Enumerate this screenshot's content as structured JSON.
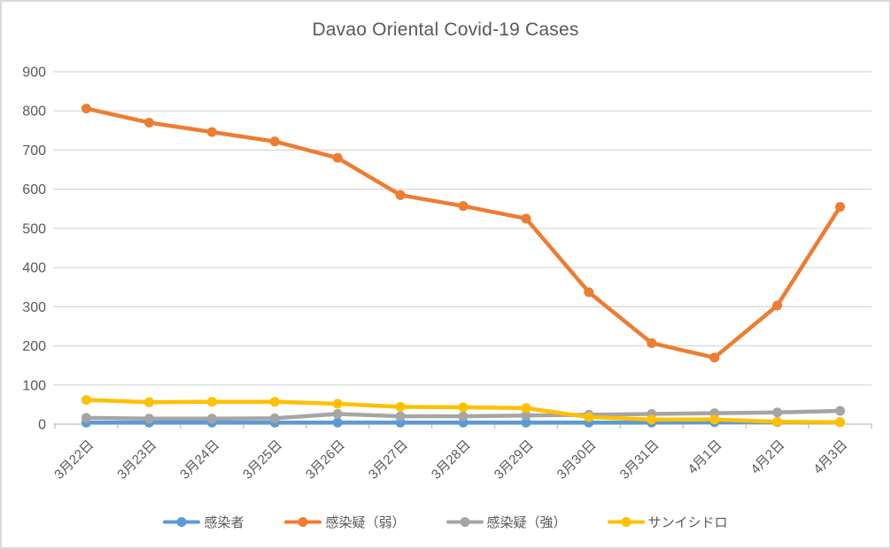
{
  "window": {
    "title": "Davao Oriental Covid-19 Cases"
  },
  "chart_data": {
    "type": "line",
    "title": "Davao Oriental Covid-19 Cases",
    "xlabel": "",
    "ylabel": "",
    "categories": [
      "3月22日",
      "3月23日",
      "3月24日",
      "3月25日",
      "3月26日",
      "3月27日",
      "3月28日",
      "3月29日",
      "3月30日",
      "3月31日",
      "4月1日",
      "4月2日",
      "4月3日"
    ],
    "series": [
      {
        "name": "感染者",
        "color": "#5B9BD5",
        "values": [
          4,
          4,
          4,
          4,
          4,
          4,
          4,
          4,
          4,
          4,
          5,
          5,
          5
        ]
      },
      {
        "name": "感染疑（弱）",
        "color": "#ED7D31",
        "values": [
          806,
          770,
          746,
          722,
          680,
          585,
          557,
          525,
          337,
          207,
          170,
          303,
          555
        ]
      },
      {
        "name": "感染疑（強）",
        "color": "#A5A5A5",
        "values": [
          16,
          14,
          14,
          15,
          26,
          20,
          20,
          22,
          24,
          26,
          28,
          30,
          34
        ]
      },
      {
        "name": "サンイシドロ",
        "color": "#FFC000",
        "values": [
          62,
          56,
          57,
          57,
          52,
          44,
          43,
          41,
          18,
          12,
          12,
          6,
          5
        ]
      }
    ],
    "ylim": [
      0,
      900
    ],
    "ytick_step": 100,
    "ytick_labels": [
      "0",
      "100",
      "200",
      "300",
      "400",
      "500",
      "600",
      "700",
      "800",
      "900"
    ],
    "grid": "horizontal-only",
    "legend_position": "bottom",
    "colors": {
      "title_text": "#595959",
      "axis_label_text": "#595959",
      "gridline": "#d9d9d9",
      "axis_line": "#bfbfbf",
      "frame_border": "#d9d9d9",
      "background": "#ffffff"
    }
  }
}
